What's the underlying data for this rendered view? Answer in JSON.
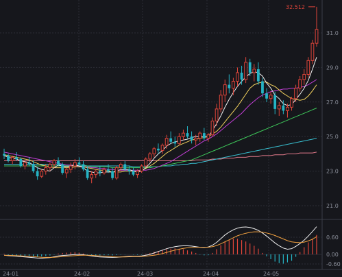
{
  "chart_data": [
    {
      "type": "candlestick",
      "x_ticks": [
        "24-01",
        "24-02",
        "24-03",
        "24-04",
        "24-05"
      ],
      "y_ticks": [
        21.0,
        23.0,
        25.0,
        27.0,
        29.0,
        31.0
      ],
      "ylim": [
        20.0,
        33.0
      ],
      "grid": true,
      "high_annotation": "32.512",
      "high_value": 32.512,
      "colors": {
        "up": "#e0453a",
        "down": "#25b3c4",
        "ma5": "#f0f0f0",
        "ma10": "#f4d35e",
        "ma20": "#c23fd6",
        "ma60": "#3ec95a",
        "ma120": "#38bfd0",
        "ma250": "#e27a8a"
      },
      "candles": [
        [
          24.0,
          24.3,
          23.7,
          23.9
        ],
        [
          23.9,
          24.0,
          23.5,
          23.6
        ],
        [
          23.6,
          23.9,
          23.4,
          23.8
        ],
        [
          23.8,
          24.1,
          23.6,
          23.7
        ],
        [
          23.7,
          23.8,
          23.2,
          23.3
        ],
        [
          23.3,
          23.6,
          23.1,
          23.5
        ],
        [
          23.5,
          23.8,
          23.3,
          23.4
        ],
        [
          23.4,
          23.6,
          22.9,
          23.0
        ],
        [
          23.0,
          23.2,
          22.5,
          22.7
        ],
        [
          22.7,
          23.1,
          22.6,
          23.0
        ],
        [
          23.0,
          23.4,
          22.8,
          23.2
        ],
        [
          23.2,
          23.5,
          23.0,
          23.4
        ],
        [
          23.4,
          23.7,
          23.2,
          23.6
        ],
        [
          23.6,
          23.8,
          23.3,
          23.4
        ],
        [
          23.4,
          23.5,
          22.8,
          22.9
        ],
        [
          22.9,
          23.2,
          22.6,
          23.1
        ],
        [
          23.1,
          23.5,
          22.9,
          23.3
        ],
        [
          23.3,
          23.7,
          23.1,
          23.5
        ],
        [
          23.5,
          23.8,
          23.3,
          23.4
        ],
        [
          23.4,
          23.6,
          23.0,
          23.1
        ],
        [
          23.1,
          23.3,
          22.5,
          22.6
        ],
        [
          22.6,
          23.0,
          22.3,
          22.8
        ],
        [
          22.8,
          23.1,
          22.6,
          23.0
        ],
        [
          23.0,
          23.3,
          22.7,
          22.9
        ],
        [
          22.9,
          23.2,
          22.8,
          23.1
        ],
        [
          23.1,
          23.4,
          22.9,
          23.0
        ],
        [
          23.0,
          23.2,
          22.5,
          22.6
        ],
        [
          22.6,
          23.3,
          22.5,
          23.2
        ],
        [
          23.2,
          23.5,
          23.0,
          23.4
        ],
        [
          23.4,
          23.6,
          23.0,
          23.1
        ],
        [
          23.1,
          23.3,
          22.8,
          23.0
        ],
        [
          23.0,
          23.2,
          22.7,
          22.8
        ],
        [
          22.8,
          23.1,
          22.6,
          23.0
        ],
        [
          23.0,
          23.4,
          22.9,
          23.3
        ],
        [
          23.3,
          23.8,
          23.2,
          23.7
        ],
        [
          23.7,
          24.1,
          23.5,
          24.0
        ],
        [
          24.0,
          24.4,
          23.8,
          24.3
        ],
        [
          24.3,
          24.6,
          24.0,
          24.2
        ],
        [
          24.2,
          24.6,
          24.0,
          24.5
        ],
        [
          24.5,
          25.1,
          24.3,
          24.9
        ],
        [
          24.9,
          25.3,
          24.6,
          24.7
        ],
        [
          24.7,
          25.0,
          24.4,
          24.6
        ],
        [
          24.6,
          25.2,
          24.5,
          25.0
        ],
        [
          25.0,
          25.4,
          24.8,
          25.2
        ],
        [
          25.2,
          25.6,
          24.9,
          25.0
        ],
        [
          25.0,
          25.3,
          24.6,
          24.8
        ],
        [
          24.8,
          25.1,
          24.5,
          24.9
        ],
        [
          24.9,
          25.3,
          24.7,
          25.2
        ],
        [
          25.2,
          25.5,
          24.8,
          24.9
        ],
        [
          24.9,
          25.2,
          24.7,
          25.1
        ],
        [
          25.1,
          26.1,
          25.0,
          25.9
        ],
        [
          25.9,
          26.9,
          25.6,
          26.6
        ],
        [
          26.6,
          27.7,
          26.4,
          27.4
        ],
        [
          27.4,
          28.3,
          27.0,
          28.0
        ],
        [
          28.0,
          28.6,
          27.5,
          27.8
        ],
        [
          27.8,
          28.4,
          27.4,
          28.2
        ],
        [
          28.2,
          29.0,
          27.9,
          28.7
        ],
        [
          28.7,
          29.1,
          28.0,
          28.3
        ],
        [
          28.3,
          29.6,
          28.1,
          29.3
        ],
        [
          29.3,
          29.5,
          28.5,
          28.7
        ],
        [
          28.7,
          29.2,
          28.2,
          28.9
        ],
        [
          28.9,
          29.3,
          28.0,
          28.2
        ],
        [
          28.2,
          28.4,
          27.3,
          27.5
        ],
        [
          27.5,
          27.8,
          27.0,
          27.2
        ],
        [
          27.2,
          27.6,
          26.9,
          27.4
        ],
        [
          27.4,
          27.6,
          26.3,
          26.6
        ],
        [
          26.6,
          27.0,
          26.2,
          26.8
        ],
        [
          26.8,
          27.1,
          26.3,
          26.5
        ],
        [
          26.5,
          26.9,
          26.1,
          26.7
        ],
        [
          26.7,
          27.3,
          26.5,
          27.2
        ],
        [
          27.2,
          28.0,
          27.0,
          27.8
        ],
        [
          27.8,
          28.5,
          27.6,
          28.3
        ],
        [
          28.3,
          28.9,
          28.0,
          28.6
        ],
        [
          28.6,
          29.6,
          28.4,
          29.4
        ],
        [
          29.4,
          30.6,
          29.2,
          30.4
        ],
        [
          30.4,
          32.512,
          30.2,
          31.2
        ]
      ],
      "ma_lines": {
        "ma5": [
          23.9,
          23.8,
          23.75,
          23.7,
          23.6,
          23.55,
          23.5,
          23.35,
          23.2,
          23.1,
          23.05,
          23.0,
          23.2,
          23.35,
          23.3,
          23.25,
          23.3,
          23.35,
          23.3,
          23.2,
          23.0,
          22.95,
          22.9,
          22.9,
          22.95,
          22.95,
          22.95,
          23.0,
          23.1,
          23.1,
          23.1,
          23.0,
          22.95,
          23.0,
          23.2,
          23.45,
          23.75,
          24.0,
          24.2,
          24.45,
          24.6,
          24.7,
          24.75,
          24.8,
          24.85,
          24.95,
          25.0,
          25.0,
          25.0,
          25.0,
          25.35,
          25.75,
          26.2,
          26.7,
          27.15,
          27.55,
          27.9,
          28.2,
          28.45,
          28.65,
          28.75,
          28.7,
          28.5,
          28.1,
          27.8,
          27.4,
          27.2,
          26.9,
          26.8,
          26.85,
          27.15,
          27.45,
          27.8,
          28.25,
          28.9,
          29.6
        ],
        "ma10": [
          23.95,
          23.9,
          23.85,
          23.8,
          23.75,
          23.7,
          23.65,
          23.55,
          23.45,
          23.35,
          23.3,
          23.25,
          23.2,
          23.2,
          23.2,
          23.2,
          23.2,
          23.25,
          23.25,
          23.25,
          23.2,
          23.15,
          23.1,
          23.05,
          23.05,
          23.0,
          22.95,
          22.95,
          22.95,
          23.0,
          23.0,
          23.0,
          23.0,
          23.05,
          23.15,
          23.3,
          23.45,
          23.65,
          23.85,
          24.05,
          24.2,
          24.35,
          24.5,
          24.6,
          24.7,
          24.8,
          24.85,
          24.9,
          24.95,
          25.0,
          25.15,
          25.3,
          25.55,
          25.85,
          26.15,
          26.45,
          26.75,
          27.1,
          27.45,
          27.8,
          28.0,
          28.1,
          28.15,
          28.15,
          28.0,
          27.9,
          27.7,
          27.5,
          27.35,
          27.2,
          27.15,
          27.1,
          27.15,
          27.35,
          27.65,
          28.0
        ],
        "ma20": [
          24.1,
          24.05,
          24.0,
          23.95,
          23.9,
          23.85,
          23.8,
          23.75,
          23.7,
          23.65,
          23.6,
          23.55,
          23.5,
          23.45,
          23.4,
          23.35,
          23.35,
          23.3,
          23.3,
          23.25,
          23.25,
          23.2,
          23.2,
          23.15,
          23.15,
          23.1,
          23.1,
          23.05,
          23.05,
          23.05,
          23.05,
          23.05,
          23.05,
          23.05,
          23.05,
          23.1,
          23.15,
          23.25,
          23.35,
          23.45,
          23.55,
          23.7,
          23.85,
          24.0,
          24.15,
          24.3,
          24.45,
          24.6,
          24.75,
          24.85,
          25.0,
          25.15,
          25.35,
          25.55,
          25.75,
          25.95,
          26.15,
          26.35,
          26.6,
          26.85,
          27.05,
          27.25,
          27.4,
          27.5,
          27.6,
          27.65,
          27.7,
          27.75,
          27.75,
          27.8,
          27.8,
          27.85,
          27.9,
          28.0,
          28.15,
          28.3
        ],
        "ma60": [
          23.3,
          23.3,
          23.3,
          23.3,
          23.3,
          23.3,
          23.3,
          23.3,
          23.3,
          23.3,
          23.3,
          23.3,
          23.3,
          23.3,
          23.3,
          23.3,
          23.3,
          23.3,
          23.3,
          23.3,
          23.3,
          23.25,
          23.25,
          23.25,
          23.25,
          23.25,
          23.2,
          23.2,
          23.2,
          23.2,
          23.2,
          23.2,
          23.2,
          23.2,
          23.2,
          23.2,
          23.25,
          23.25,
          23.3,
          23.35,
          23.4,
          23.45,
          23.5,
          23.55,
          23.6,
          23.65,
          23.75,
          23.85,
          23.95,
          24.05,
          24.15,
          24.25,
          24.35,
          24.45,
          24.55,
          24.65,
          24.75,
          24.85,
          24.95,
          25.05,
          25.15,
          25.25,
          25.35,
          25.45,
          25.55,
          25.65,
          25.75,
          25.85,
          25.95,
          26.05,
          26.15,
          26.25,
          26.35,
          26.45,
          26.55,
          26.65
        ],
        "ma120": [
          23.4,
          23.4,
          23.4,
          23.4,
          23.4,
          23.4,
          23.4,
          23.4,
          23.4,
          23.4,
          23.4,
          23.4,
          23.4,
          23.4,
          23.35,
          23.35,
          23.35,
          23.35,
          23.35,
          23.35,
          23.3,
          23.3,
          23.3,
          23.3,
          23.3,
          23.3,
          23.3,
          23.3,
          23.3,
          23.3,
          23.3,
          23.25,
          23.25,
          23.25,
          23.25,
          23.25,
          23.25,
          23.25,
          23.3,
          23.3,
          23.3,
          23.35,
          23.35,
          23.4,
          23.4,
          23.45,
          23.45,
          23.5,
          23.55,
          23.6,
          23.65,
          23.7,
          23.75,
          23.8,
          23.85,
          23.9,
          23.95,
          24.0,
          24.05,
          24.1,
          24.15,
          24.2,
          24.25,
          24.3,
          24.35,
          24.4,
          24.45,
          24.5,
          24.55,
          24.6,
          24.65,
          24.7,
          24.75,
          24.8,
          24.85,
          24.9
        ],
        "ma250": [
          23.6,
          23.6,
          23.6,
          23.6,
          23.6,
          23.6,
          23.6,
          23.6,
          23.6,
          23.6,
          23.6,
          23.6,
          23.6,
          23.6,
          23.6,
          23.6,
          23.6,
          23.6,
          23.6,
          23.6,
          23.6,
          23.6,
          23.6,
          23.6,
          23.6,
          23.6,
          23.6,
          23.6,
          23.6,
          23.6,
          23.6,
          23.6,
          23.6,
          23.6,
          23.6,
          23.6,
          23.6,
          23.6,
          23.6,
          23.6,
          23.6,
          23.6,
          23.6,
          23.6,
          23.6,
          23.6,
          23.65,
          23.65,
          23.65,
          23.65,
          23.7,
          23.7,
          23.7,
          23.75,
          23.75,
          23.75,
          23.8,
          23.8,
          23.8,
          23.85,
          23.85,
          23.85,
          23.9,
          23.9,
          23.9,
          23.95,
          23.95,
          23.95,
          24.0,
          24.0,
          24.0,
          24.05,
          24.05,
          24.05,
          24.05,
          24.1
        ]
      }
    },
    {
      "type": "macd",
      "y_ticks": [
        0.6,
        0.0,
        -0.6
      ],
      "ylim": [
        -0.9,
        1.1
      ],
      "colors": {
        "up": "#e0453a",
        "down": "#25b3c4",
        "dif": "#f0f0f0",
        "dea": "#f4a340"
      },
      "hist": [
        0.02,
        -0.04,
        -0.06,
        -0.08,
        -0.1,
        -0.1,
        -0.09,
        -0.12,
        -0.14,
        -0.13,
        -0.1,
        -0.07,
        -0.02,
        0.03,
        0.05,
        0.06,
        0.07,
        0.08,
        0.06,
        0.03,
        -0.02,
        -0.05,
        -0.07,
        -0.06,
        -0.05,
        -0.05,
        -0.06,
        -0.04,
        -0.02,
        -0.01,
        0.0,
        -0.02,
        -0.03,
        -0.02,
        0.02,
        0.05,
        0.09,
        0.12,
        0.15,
        0.18,
        0.2,
        0.21,
        0.2,
        0.18,
        0.14,
        0.1,
        0.05,
        -0.02,
        -0.06,
        -0.05,
        0.05,
        0.18,
        0.32,
        0.45,
        0.5,
        0.55,
        0.55,
        0.5,
        0.45,
        0.38,
        0.3,
        0.2,
        0.05,
        -0.12,
        -0.3,
        -0.45,
        -0.55,
        -0.58,
        -0.5,
        -0.4,
        -0.15,
        0.08,
        0.25,
        0.42,
        0.55,
        0.68
      ],
      "dif": [
        -0.05,
        -0.08,
        -0.1,
        -0.12,
        -0.14,
        -0.16,
        -0.18,
        -0.2,
        -0.23,
        -0.24,
        -0.22,
        -0.2,
        -0.15,
        -0.1,
        -0.07,
        -0.05,
        -0.03,
        -0.01,
        0.0,
        -0.02,
        -0.06,
        -0.1,
        -0.14,
        -0.16,
        -0.17,
        -0.18,
        -0.19,
        -0.18,
        -0.16,
        -0.14,
        -0.12,
        -0.12,
        -0.12,
        -0.1,
        -0.05,
        0.0,
        0.05,
        0.1,
        0.15,
        0.2,
        0.24,
        0.27,
        0.29,
        0.3,
        0.3,
        0.29,
        0.27,
        0.25,
        0.24,
        0.26,
        0.32,
        0.42,
        0.55,
        0.68,
        0.78,
        0.86,
        0.92,
        0.95,
        0.96,
        0.94,
        0.9,
        0.84,
        0.75,
        0.64,
        0.52,
        0.4,
        0.3,
        0.22,
        0.18,
        0.2,
        0.28,
        0.38,
        0.5,
        0.64,
        0.8,
        0.97
      ],
      "dea": [
        -0.06,
        -0.06,
        -0.07,
        -0.08,
        -0.09,
        -0.11,
        -0.13,
        -0.14,
        -0.16,
        -0.18,
        -0.19,
        -0.19,
        -0.18,
        -0.16,
        -0.14,
        -0.12,
        -0.1,
        -0.08,
        -0.06,
        -0.05,
        -0.05,
        -0.06,
        -0.08,
        -0.1,
        -0.12,
        -0.13,
        -0.15,
        -0.16,
        -0.16,
        -0.16,
        -0.15,
        -0.14,
        -0.14,
        -0.13,
        -0.11,
        -0.08,
        -0.05,
        -0.01,
        0.03,
        0.07,
        0.11,
        0.15,
        0.18,
        0.21,
        0.23,
        0.24,
        0.25,
        0.25,
        0.25,
        0.25,
        0.27,
        0.31,
        0.37,
        0.44,
        0.51,
        0.58,
        0.65,
        0.7,
        0.74,
        0.77,
        0.79,
        0.79,
        0.78,
        0.75,
        0.71,
        0.66,
        0.6,
        0.54,
        0.48,
        0.44,
        0.42,
        0.41,
        0.43,
        0.47,
        0.53,
        0.62
      ]
    }
  ]
}
